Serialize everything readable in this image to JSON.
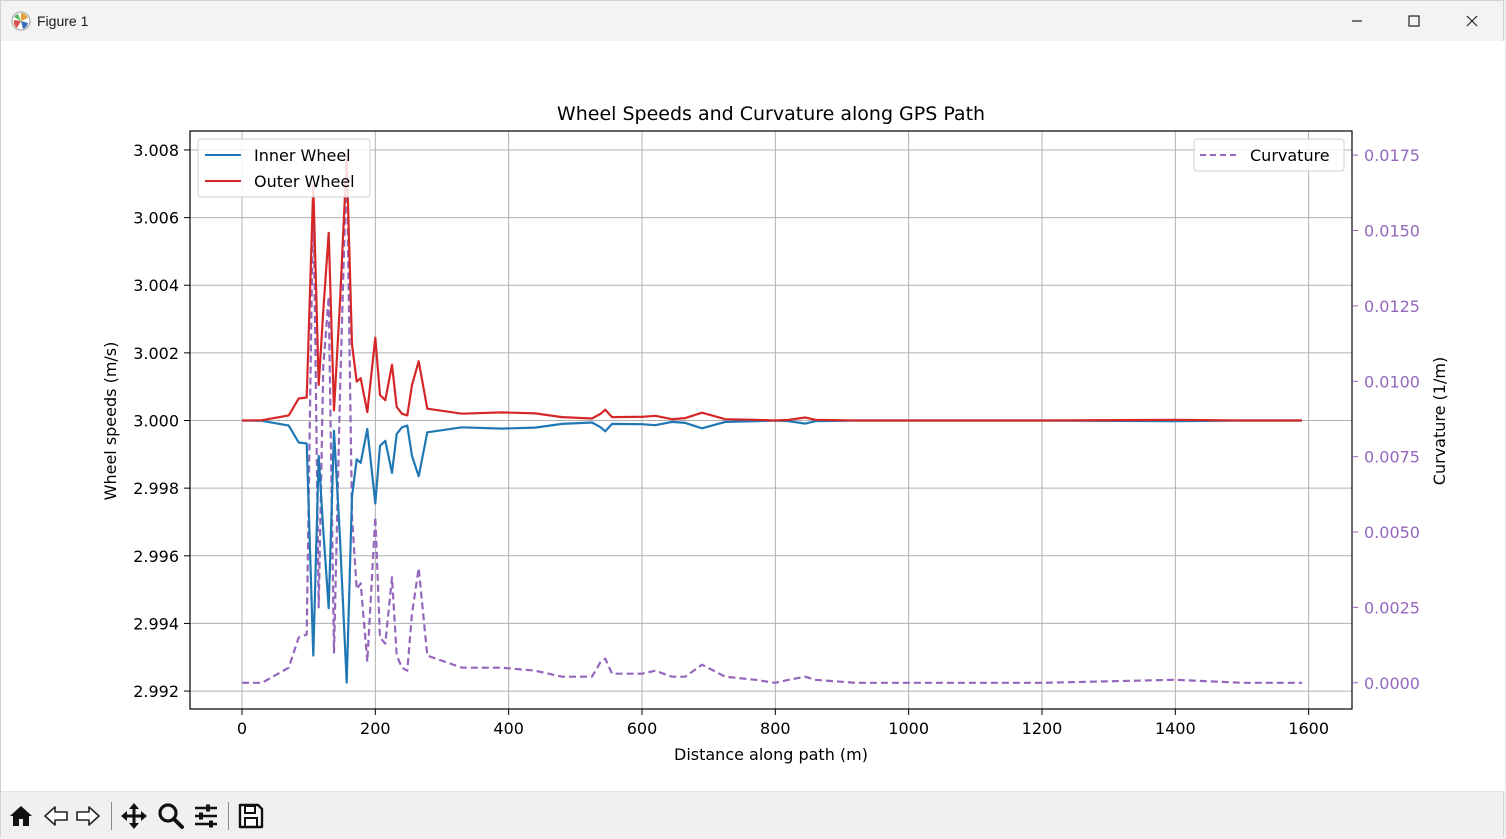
{
  "window": {
    "title": "Figure 1"
  },
  "colors": {
    "inner": "#1f77b4",
    "outer": "#d62728",
    "curvature": "#9467bd",
    "grid": "#b0b0b0",
    "axis": "#000000"
  },
  "toolbar": {
    "items": [
      "home",
      "back",
      "forward",
      "pan",
      "zoom",
      "configure-subplots",
      "save"
    ]
  },
  "chart_data": {
    "type": "line",
    "title": "Wheel Speeds and Curvature along GPS Path",
    "xlabel": "Distance along path (m)",
    "ylabel": "Wheel speeds (m/s)",
    "y2label": "Curvature (1/m)",
    "xlim": [
      -78,
      1665
    ],
    "ylim": [
      2.99147,
      3.00856
    ],
    "y2lim": [
      -0.00087,
      0.0183
    ],
    "xticks": [
      0,
      200,
      400,
      600,
      800,
      1000,
      1200,
      1400,
      1600
    ],
    "xtick_labels": [
      "0",
      "200",
      "400",
      "600",
      "800",
      "1000",
      "1200",
      "1400",
      "1600"
    ],
    "yticks": [
      2.992,
      2.994,
      2.996,
      2.998,
      3.0,
      3.002,
      3.004,
      3.006,
      3.008
    ],
    "ytick_labels": [
      "2.992",
      "2.994",
      "2.996",
      "2.998",
      "3.000",
      "3.002",
      "3.004",
      "3.006",
      "3.008"
    ],
    "y2ticks": [
      0.0,
      0.0025,
      0.005,
      0.0075,
      0.01,
      0.0125,
      0.015,
      0.0175
    ],
    "y2tick_labels": [
      "0.0000",
      "0.0025",
      "0.0050",
      "0.0075",
      "0.0100",
      "0.0125",
      "0.0150",
      "0.0175"
    ],
    "grid": true,
    "legend_left": [
      "Inner Wheel",
      "Outer Wheel"
    ],
    "legend_right": [
      "Curvature"
    ],
    "x": [
      0,
      30,
      70,
      85,
      97,
      107,
      115,
      122,
      130,
      138,
      147,
      157,
      165,
      172,
      178,
      188,
      200,
      207,
      215,
      225,
      232,
      240,
      248,
      255,
      265,
      278,
      330,
      390,
      440,
      480,
      525,
      538,
      545,
      555,
      600,
      620,
      645,
      665,
      690,
      725,
      770,
      800,
      820,
      845,
      860,
      920,
      1000,
      1200,
      1400,
      1500,
      1590
    ],
    "series": [
      {
        "name": "Inner Wheel",
        "axis": "left",
        "style": "solid",
        "values": [
          3.0,
          2.99999,
          2.99985,
          2.99935,
          2.99932,
          2.99305,
          2.99895,
          2.99675,
          2.99445,
          2.9997,
          2.9965,
          2.99225,
          2.99775,
          2.99885,
          2.99875,
          2.99975,
          2.99755,
          2.99925,
          2.9994,
          2.99845,
          2.9996,
          2.9998,
          2.99985,
          2.99895,
          2.99835,
          2.99965,
          2.9998,
          2.99976,
          2.99979,
          2.9999,
          2.99994,
          2.9998,
          2.99968,
          2.9999,
          2.99989,
          2.99986,
          2.99996,
          2.99993,
          2.99977,
          2.99996,
          2.99998,
          3.0,
          2.99998,
          2.99991,
          2.99998,
          3.0,
          3.0,
          3.0,
          2.99998,
          3.0,
          3.0
        ]
      },
      {
        "name": "Outer Wheel",
        "axis": "left",
        "style": "solid",
        "values": [
          3.0,
          3.00001,
          3.00015,
          3.00065,
          3.00068,
          3.00695,
          3.00105,
          3.00325,
          3.00555,
          3.0003,
          3.0035,
          3.00775,
          3.00225,
          3.00115,
          3.00125,
          3.00025,
          3.00245,
          3.00075,
          3.0006,
          3.00165,
          3.0004,
          3.0002,
          3.00015,
          3.00105,
          3.00175,
          3.00035,
          3.0002,
          3.00024,
          3.00021,
          3.0001,
          3.00006,
          3.0002,
          3.00032,
          3.0001,
          3.00011,
          3.00014,
          3.00004,
          3.00007,
          3.00023,
          3.00004,
          3.00002,
          3.0,
          3.00002,
          3.00009,
          3.00002,
          3.0,
          3.0,
          3.0,
          3.00002,
          3.0,
          3.0
        ]
      },
      {
        "name": "Curvature",
        "axis": "right",
        "style": "dashed",
        "values": [
          0.0,
          0.0,
          0.0005,
          0.0015,
          0.0016,
          0.0165,
          0.0025,
          0.0105,
          0.0128,
          0.001,
          0.0096,
          0.0175,
          0.0055,
          0.0031,
          0.0033,
          0.0007,
          0.0055,
          0.0015,
          0.0013,
          0.0035,
          0.0009,
          0.0005,
          0.0004,
          0.0023,
          0.0038,
          0.0009,
          0.0005,
          0.0005,
          0.0004,
          0.0002,
          0.0002,
          0.0007,
          0.0008,
          0.0003,
          0.0003,
          0.0004,
          0.0002,
          0.0002,
          0.0006,
          0.0002,
          0.0001,
          0.0,
          0.0001,
          0.0002,
          0.0001,
          0.0,
          0.0,
          0.0,
          0.0001,
          0.0,
          0.0
        ]
      }
    ]
  }
}
